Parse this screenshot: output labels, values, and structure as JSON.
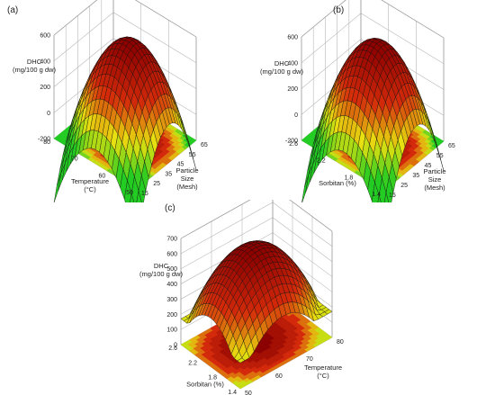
{
  "chart_data": [
    {
      "type": "surface",
      "panel_label": "(a)",
      "zlabel": [
        "DHC",
        "(mg/100 g dw)"
      ],
      "z_ticks": [
        "600",
        "400",
        "200",
        "0",
        "-200"
      ],
      "x": {
        "label": [
          "Particle",
          "Size",
          "(Mesh)"
        ],
        "ticks": [
          "15",
          "25",
          "35",
          "45",
          "55",
          "65"
        ],
        "range": [
          15,
          65
        ]
      },
      "y": {
        "label": [
          "Temperature",
          "(°C)"
        ],
        "ticks": [
          "50",
          "60",
          "70",
          "80"
        ],
        "range": [
          50,
          80
        ]
      },
      "z_range": [
        -200,
        650
      ],
      "peak_value": 620,
      "colors": {
        "high": "#8b0000",
        "mid": "#d42a0a",
        "low": "#e8e010",
        "lowest": "#22cc22",
        "floor": "#ff2200"
      }
    },
    {
      "type": "surface",
      "panel_label": "(b)",
      "zlabel": [
        "DHC",
        "(mg/100 g dw)"
      ],
      "z_ticks": [
        "600",
        "400",
        "200",
        "0",
        "-200"
      ],
      "x": {
        "label": [
          "Particle",
          "Size",
          "(Mesh)"
        ],
        "ticks": [
          "15",
          "25",
          "35",
          "45",
          "55",
          "65"
        ],
        "range": [
          15,
          65
        ]
      },
      "y": {
        "label": [
          "Sorbitan (%)"
        ],
        "ticks": [
          "1.4",
          "1.8",
          "2.2",
          "2.6"
        ],
        "range": [
          1.4,
          2.6
        ]
      },
      "z_range": [
        -200,
        650
      ],
      "peak_value": 620,
      "colors": {
        "high": "#8b0000",
        "mid": "#d42a0a",
        "low": "#e8e010",
        "lowest": "#22cc22",
        "floor": "#ff2200"
      }
    },
    {
      "type": "surface",
      "panel_label": "(c)",
      "zlabel": [
        "DHC",
        "(mg/100 g dw)"
      ],
      "z_ticks": [
        "700",
        "600",
        "500",
        "400",
        "300",
        "200",
        "100",
        "0"
      ],
      "x": {
        "label": [
          "Temperature",
          "(°C)"
        ],
        "ticks": [
          "50",
          "60",
          "70",
          "80"
        ],
        "range": [
          50,
          80
        ]
      },
      "y": {
        "label": [
          "Sorbitan (%)"
        ],
        "ticks": [
          "1.4",
          "1.8",
          "2.2",
          "2.6"
        ],
        "range": [
          1.4,
          2.6
        ]
      },
      "z_range": [
        0,
        700
      ],
      "peak_value": 620,
      "colors": {
        "high": "#8b0000",
        "mid": "#d42a0a",
        "low": "#e8e010",
        "lowest": "#22cc22",
        "floor": "#ff2200"
      }
    }
  ]
}
